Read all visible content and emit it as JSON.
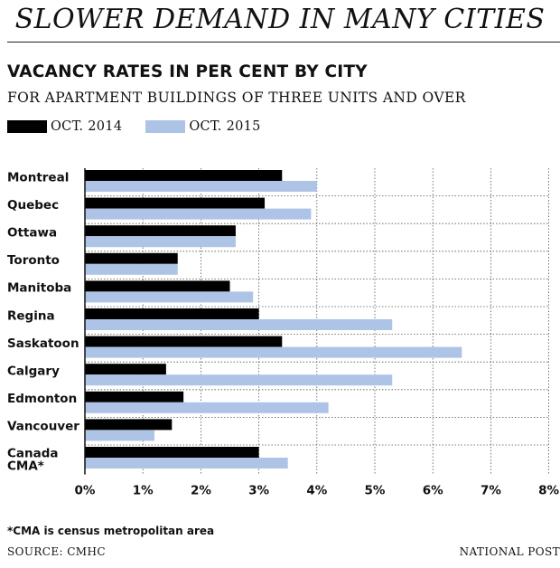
{
  "headline": "SLOWER DEMAND IN MANY CITIES",
  "footnote": "*CMA is census metropolitan area",
  "source": "SOURCE: CMHC",
  "credit": "NATIONAL POST",
  "colors": {
    "oct2014": "#000000",
    "oct2015": "#aec4e6",
    "grid": "#555555"
  },
  "chart_data": {
    "type": "bar",
    "orientation": "horizontal",
    "title": "VACANCY RATES IN PER CENT BY CITY",
    "subtitle": "FOR APARTMENT BUILDINGS OF THREE UNITS AND OVER",
    "categories": [
      "Montreal",
      "Quebec",
      "Ottawa",
      "Toronto",
      "Manitoba",
      "Regina",
      "Saskatoon",
      "Calgary",
      "Edmonton",
      "Vancouver",
      "Canada CMA*"
    ],
    "series": [
      {
        "name": "OCT. 2014",
        "values": [
          3.4,
          3.1,
          2.6,
          1.6,
          2.5,
          3.0,
          3.4,
          1.4,
          1.7,
          1.5,
          3.0
        ]
      },
      {
        "name": "OCT. 2015",
        "values": [
          4.0,
          3.9,
          2.6,
          1.6,
          2.9,
          5.3,
          6.5,
          5.3,
          4.2,
          1.2,
          3.5
        ]
      }
    ],
    "xlim": [
      0,
      8
    ],
    "x_ticks": [
      "0%",
      "1%",
      "2%",
      "3%",
      "4%",
      "5%",
      "6%",
      "7%",
      "8%"
    ],
    "grid": "dotted vertical and horizontal",
    "legend": "top-left"
  }
}
